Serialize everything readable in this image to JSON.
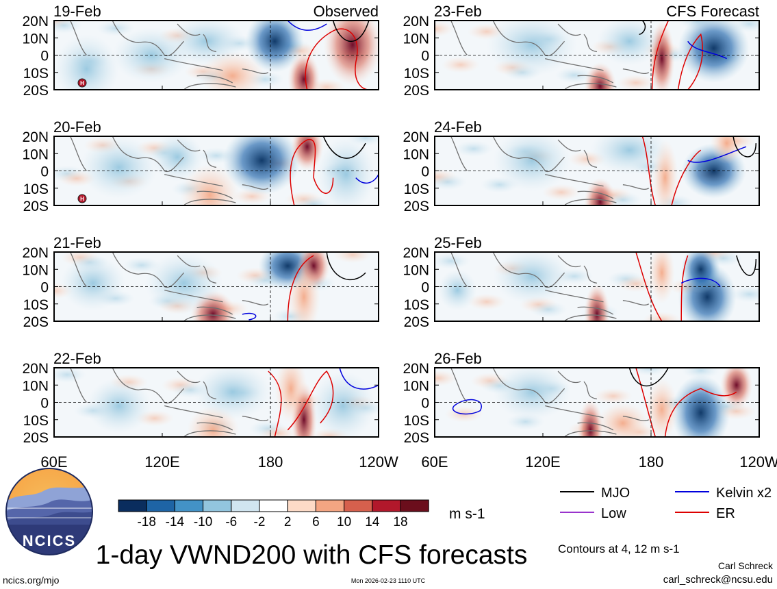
{
  "page": {
    "title": "1-day VWND200 with CFS forecasts",
    "units": "m s-1",
    "contour_note": "Contours at 4, 12 m s-1",
    "author": "Carl Schreck",
    "email": "carl_schreck@ncsu.edu",
    "website": "ncics.org/mjo",
    "timestamp": "Mon 2026-02-23 1110 UTC",
    "logo_text": "NCICS"
  },
  "columns": [
    {
      "header": "Observed",
      "panels": [
        "19-Feb",
        "20-Feb",
        "21-Feb",
        "22-Feb"
      ]
    },
    {
      "header": "CFS Forecast",
      "panels": [
        "23-Feb",
        "24-Feb",
        "25-Feb",
        "26-Feb"
      ]
    }
  ],
  "lat_labels": [
    "20N",
    "10N",
    "0",
    "10S",
    "20S"
  ],
  "lon_labels": [
    "60E",
    "120E",
    "180",
    "120W"
  ],
  "colorbar": {
    "ticks": [
      "-18",
      "-14",
      "-10",
      "-6",
      "-2",
      "2",
      "6",
      "10",
      "14",
      "18"
    ],
    "colors": [
      "#0a2d5e",
      "#1e64a5",
      "#4392c6",
      "#92c5de",
      "#d1e5f0",
      "#ffffff",
      "#fddbc7",
      "#f4a582",
      "#d6604d",
      "#b2182b",
      "#6b0e1c"
    ]
  },
  "legend": [
    {
      "label": "MJO",
      "color": "#000000"
    },
    {
      "label": "Kelvin x2",
      "color": "#0000dd"
    },
    {
      "label": "Low",
      "color": "#9933cc"
    },
    {
      "label": "ER",
      "color": "#dd0000"
    }
  ],
  "hurricane_symbol": "H",
  "chart_data": {
    "type": "heatmap",
    "variable": "VWND200",
    "title": "1-day VWND200 with CFS forecasts",
    "units": "m s-1",
    "x_range": [
      "60E",
      "120W"
    ],
    "y_range": [
      "20S",
      "20N"
    ],
    "color_levels": [
      -18,
      -14,
      -10,
      -6,
      -2,
      2,
      6,
      10,
      14,
      18
    ],
    "contour_levels": [
      4,
      12
    ],
    "observed_dates": [
      "19-Feb",
      "20-Feb",
      "21-Feb",
      "22-Feb"
    ],
    "forecast_dates": [
      "23-Feb",
      "24-Feb",
      "25-Feb",
      "26-Feb"
    ],
    "contour_fields": [
      "MJO",
      "Kelvin x2",
      "Low",
      "ER"
    ]
  }
}
